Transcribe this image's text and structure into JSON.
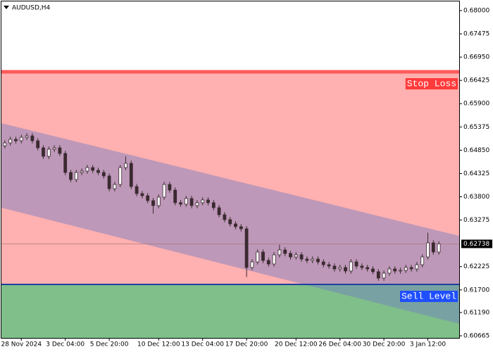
{
  "chart_data": {
    "type": "candlestick",
    "title": "AUDUSD,H4",
    "candle_color": "#3a2a30",
    "ylim": [
      0.60617,
      0.68206
    ],
    "yticks": [
      {
        "value": 0.68,
        "label": "0.68000"
      },
      0.67475,
      {
        "value": 0.6695,
        "label": "0.66950"
      },
      0.66425,
      {
        "value": 0.659,
        "label": "0.65900"
      },
      0.65375,
      {
        "value": 0.6485,
        "label": "0.64850"
      },
      0.64325,
      {
        "value": 0.638,
        "label": "0.63800"
      },
      0.63275,
      0.62225,
      {
        "value": 0.617,
        "label": "0.61700"
      },
      {
        "value": 0.6119,
        "label": "0.61190"
      },
      0.60665
    ],
    "last_price": 0.62738,
    "zones": {
      "risk_color": "#ffb0b0",
      "target_color": "#80bf8a"
    },
    "levels": [
      {
        "label": "Stop Loss",
        "value": 0.66618,
        "color": "#ff5a5a",
        "label_color": "#ff3b3b"
      },
      {
        "label": "Sell Level",
        "value": 0.61824,
        "color": "#1e3fa0",
        "label_color": "#1f4fff"
      }
    ],
    "channel": {
      "upper": [
        0.65459,
        0.62919
      ],
      "lower": [
        0.63554,
        0.60935
      ],
      "color": "rgba(110,125,195,0.45)"
    },
    "categories": [
      null,
      null,
      null,
      "28 Nov 2024",
      null,
      null,
      null,
      null,
      null,
      null,
      null,
      "3 Dec 04:00",
      null,
      null,
      null,
      null,
      null,
      null,
      null,
      "5 Dec 20:00",
      null,
      null,
      null,
      null,
      null,
      null,
      null,
      null,
      "10 Dec 12:00",
      null,
      null,
      null,
      null,
      null,
      null,
      null,
      "13 Dec 04:00",
      null,
      null,
      null,
      null,
      null,
      null,
      null,
      "17 Dec 20:00",
      null,
      null,
      null,
      null,
      null,
      null,
      null,
      null,
      "20 Dec 12:00",
      null,
      null,
      null,
      null,
      null,
      null,
      null,
      "26 Dec 04:00",
      null,
      null,
      null,
      null,
      null,
      null,
      null,
      "30 Dec 20:00",
      null,
      null,
      null,
      null,
      null,
      null,
      null,
      "3 Jan 12:00",
      null,
      null
    ],
    "ohlc": [
      [
        0.6495,
        0.65075,
        0.6489,
        0.65015
      ],
      [
        0.65015,
        0.65154,
        0.64955,
        0.65094
      ],
      [
        0.65094,
        0.65154,
        0.65003,
        0.65063
      ],
      [
        0.65063,
        0.65202,
        0.65003,
        0.65142
      ],
      [
        0.65142,
        0.65234,
        0.65082,
        0.65174
      ],
      [
        0.65174,
        0.65234,
        0.65003,
        0.65063
      ],
      [
        0.65063,
        0.65123,
        0.64844,
        0.64904
      ],
      [
        0.64904,
        0.64964,
        0.64653,
        0.64713
      ],
      [
        0.64713,
        0.64932,
        0.64653,
        0.64872
      ],
      [
        0.64872,
        0.64964,
        0.64812,
        0.64904
      ],
      [
        0.64904,
        0.64964,
        0.64717,
        0.64777
      ],
      [
        0.64777,
        0.64837,
        0.64288,
        0.64348
      ],
      [
        0.64348,
        0.64408,
        0.64129,
        0.64189
      ],
      [
        0.64189,
        0.64408,
        0.64129,
        0.64348
      ],
      [
        0.64348,
        0.6444,
        0.64288,
        0.6438
      ],
      [
        0.6438,
        0.64519,
        0.6432,
        0.64459
      ],
      [
        0.64459,
        0.64519,
        0.64336,
        0.64396
      ],
      [
        0.64396,
        0.64456,
        0.64288,
        0.64348
      ],
      [
        0.64348,
        0.64408,
        0.64209,
        0.64269
      ],
      [
        0.64269,
        0.64329,
        0.63923,
        0.63983
      ],
      [
        0.63983,
        0.64138,
        0.63923,
        0.64078
      ],
      [
        0.64078,
        0.64519,
        0.64018,
        0.64459
      ],
      [
        0.64459,
        0.64713,
        0.64399,
        0.64555
      ],
      [
        0.64555,
        0.64615,
        0.63971,
        0.64031
      ],
      [
        0.64031,
        0.64091,
        0.63812,
        0.63872
      ],
      [
        0.63872,
        0.63932,
        0.63764,
        0.63824
      ],
      [
        0.63824,
        0.63884,
        0.63653,
        0.63713
      ],
      [
        0.63713,
        0.63773,
        0.6342,
        0.63602
      ],
      [
        0.63602,
        0.63853,
        0.63542,
        0.63793
      ],
      [
        0.63793,
        0.64138,
        0.63733,
        0.64078
      ],
      [
        0.64078,
        0.64138,
        0.63891,
        0.63951
      ],
      [
        0.63951,
        0.64011,
        0.63606,
        0.63666
      ],
      [
        0.63666,
        0.63726,
        0.63574,
        0.63634
      ],
      [
        0.63634,
        0.63821,
        0.63574,
        0.63761
      ],
      [
        0.63761,
        0.63821,
        0.63542,
        0.63602
      ],
      [
        0.63602,
        0.63726,
        0.63542,
        0.63666
      ],
      [
        0.63666,
        0.63789,
        0.63606,
        0.63729
      ],
      [
        0.63729,
        0.63789,
        0.63606,
        0.63666
      ],
      [
        0.63666,
        0.63726,
        0.63494,
        0.63554
      ],
      [
        0.63554,
        0.63614,
        0.63336,
        0.63396
      ],
      [
        0.63396,
        0.63456,
        0.63224,
        0.63284
      ],
      [
        0.63284,
        0.63344,
        0.63129,
        0.63189
      ],
      [
        0.63189,
        0.63249,
        0.63066,
        0.63126
      ],
      [
        0.63126,
        0.63186,
        0.63018,
        0.63078
      ],
      [
        0.63078,
        0.63138,
        0.6199,
        0.62205
      ],
      [
        0.62205,
        0.62392,
        0.62145,
        0.62332
      ],
      [
        0.62332,
        0.62614,
        0.62272,
        0.62554
      ],
      [
        0.62554,
        0.62614,
        0.62304,
        0.62364
      ],
      [
        0.62364,
        0.62424,
        0.62224,
        0.62284
      ],
      [
        0.62284,
        0.62551,
        0.62224,
        0.62491
      ],
      [
        0.62491,
        0.6272,
        0.62431,
        0.62602
      ],
      [
        0.62602,
        0.62662,
        0.62462,
        0.62522
      ],
      [
        0.62522,
        0.62582,
        0.62383,
        0.62443
      ],
      [
        0.62443,
        0.62551,
        0.62383,
        0.62491
      ],
      [
        0.62491,
        0.62551,
        0.62335,
        0.62395
      ],
      [
        0.62395,
        0.62455,
        0.62304,
        0.62364
      ],
      [
        0.62364,
        0.62455,
        0.62304,
        0.62395
      ],
      [
        0.62395,
        0.62455,
        0.62272,
        0.62332
      ],
      [
        0.62332,
        0.62392,
        0.62208,
        0.62268
      ],
      [
        0.62268,
        0.62328,
        0.62177,
        0.62237
      ],
      [
        0.62237,
        0.62297,
        0.62113,
        0.62173
      ],
      [
        0.62173,
        0.62265,
        0.62113,
        0.62205
      ],
      [
        0.62205,
        0.62265,
        0.62066,
        0.62126
      ],
      [
        0.62126,
        0.62392,
        0.62066,
        0.62332
      ],
      [
        0.62332,
        0.62392,
        0.62177,
        0.62237
      ],
      [
        0.62237,
        0.62297,
        0.62145,
        0.62205
      ],
      [
        0.62205,
        0.62265,
        0.62113,
        0.62173
      ],
      [
        0.62173,
        0.62233,
        0.6205,
        0.6211
      ],
      [
        0.6211,
        0.6217,
        0.61907,
        0.61967
      ],
      [
        0.61967,
        0.62138,
        0.61907,
        0.62078
      ],
      [
        0.62078,
        0.62233,
        0.62018,
        0.62173
      ],
      [
        0.62173,
        0.62233,
        0.62066,
        0.62126
      ],
      [
        0.62126,
        0.62201,
        0.62066,
        0.62141
      ],
      [
        0.62141,
        0.62265,
        0.62081,
        0.62205
      ],
      [
        0.62205,
        0.62265,
        0.62113,
        0.62173
      ],
      [
        0.62173,
        0.62328,
        0.62113,
        0.62268
      ],
      [
        0.62268,
        0.62503,
        0.62208,
        0.62443
      ],
      [
        0.62443,
        0.6299,
        0.62383,
        0.62761
      ],
      [
        0.62761,
        0.62821,
        0.62494,
        0.62554
      ],
      [
        0.62554,
        0.62798,
        0.62494,
        0.62738
      ]
    ]
  }
}
